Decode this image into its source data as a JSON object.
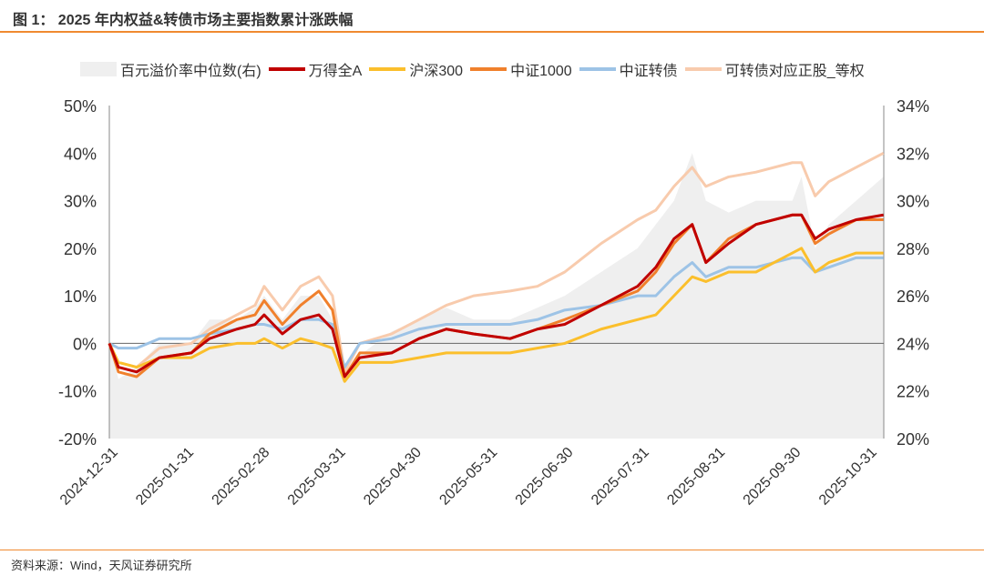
{
  "title": "图 1： 2025 年内权益&转债市场主要指数累计涨跌幅",
  "source": "资料来源：Wind，天风证券研究所",
  "chart_data": {
    "type": "line",
    "x_unit": "months since 2024-12-31",
    "x": [
      0,
      0.12,
      0.36,
      0.66,
      1.08,
      1.32,
      1.68,
      1.92,
      2.04,
      2.28,
      2.52,
      2.76,
      2.94,
      3.1,
      3.3,
      3.72,
      4.08,
      4.44,
      4.8,
      5.28,
      5.64,
      6.0,
      6.48,
      6.96,
      7.2,
      7.44,
      7.68,
      7.86,
      8.16,
      8.52,
      9.0,
      9.12,
      9.3,
      9.48,
      9.84,
      10.2
    ],
    "x_ticks": [
      "2024-12-31",
      "2025-01-31",
      "2025-02-28",
      "2025-03-31",
      "2025-04-30",
      "2025-05-31",
      "2025-06-30",
      "2025-07-31",
      "2025-08-31",
      "2025-09-30",
      "2025-10-31"
    ],
    "y_left": {
      "min": -20,
      "max": 50,
      "ticks": [
        "-20%",
        "-10%",
        "0%",
        "10%",
        "20%",
        "30%",
        "40%",
        "50%"
      ]
    },
    "y_right": {
      "min": 20,
      "max": 34,
      "ticks": [
        "20%",
        "22%",
        "24%",
        "26%",
        "28%",
        "30%",
        "32%",
        "34%"
      ]
    },
    "area_series": {
      "name": "百元溢价率中位数(右)",
      "color": "#efefef",
      "values": [
        24,
        22.5,
        23,
        24,
        24,
        25,
        25,
        25.5,
        26,
        25,
        26,
        26,
        25,
        22.5,
        23.5,
        24.5,
        25,
        25.5,
        25,
        25,
        25.5,
        26,
        27,
        28,
        29,
        30,
        32,
        30,
        29.5,
        30,
        30,
        31,
        28,
        29,
        30,
        31
      ]
    },
    "series": [
      {
        "name": "万得全A",
        "color": "#c00000",
        "values": [
          0,
          -5,
          -6,
          -3,
          -2,
          1,
          3,
          4,
          6,
          2,
          5,
          6,
          3,
          -7,
          -3,
          -2,
          1,
          3,
          2,
          1,
          3,
          4,
          8,
          12,
          16,
          22,
          25,
          17,
          21,
          25,
          27,
          27,
          22,
          24,
          26,
          27
        ]
      },
      {
        "name": "沪深300",
        "color": "#fbbf2c",
        "values": [
          0,
          -4,
          -5,
          -3,
          -3,
          -1,
          0,
          0,
          1,
          -1,
          1,
          0,
          -1,
          -8,
          -4,
          -4,
          -3,
          -2,
          -2,
          -2,
          -1,
          0,
          3,
          5,
          6,
          10,
          14,
          13,
          15,
          15,
          19,
          20,
          15,
          17,
          19,
          19
        ]
      },
      {
        "name": "中证1000",
        "color": "#f0802c",
        "values": [
          0,
          -6,
          -7,
          -3,
          -2,
          2,
          5,
          6,
          9,
          4,
          8,
          11,
          7,
          -7,
          -2,
          -2,
          1,
          3,
          2,
          1,
          3,
          5,
          8,
          11,
          15,
          21,
          25,
          17,
          22,
          25,
          27,
          27,
          21,
          23,
          26,
          26
        ]
      },
      {
        "name": "中证转债",
        "color": "#9dc3e6",
        "values": [
          0,
          -1,
          -1,
          1,
          1,
          2,
          3,
          4,
          4,
          3,
          5,
          5,
          4,
          -5,
          0,
          1,
          3,
          4,
          4,
          4,
          5,
          7,
          8,
          10,
          10,
          14,
          17,
          14,
          16,
          16,
          18,
          18,
          15,
          16,
          18,
          18
        ]
      },
      {
        "name": "可转债对应正股_等权",
        "color": "#f8cbad",
        "values": [
          0,
          -4,
          -5,
          -1,
          0,
          3,
          6,
          8,
          12,
          7,
          12,
          14,
          10,
          -6,
          0,
          2,
          5,
          8,
          10,
          11,
          12,
          15,
          21,
          26,
          28,
          33,
          37,
          33,
          35,
          36,
          38,
          38,
          31,
          34,
          37,
          40
        ]
      }
    ]
  }
}
